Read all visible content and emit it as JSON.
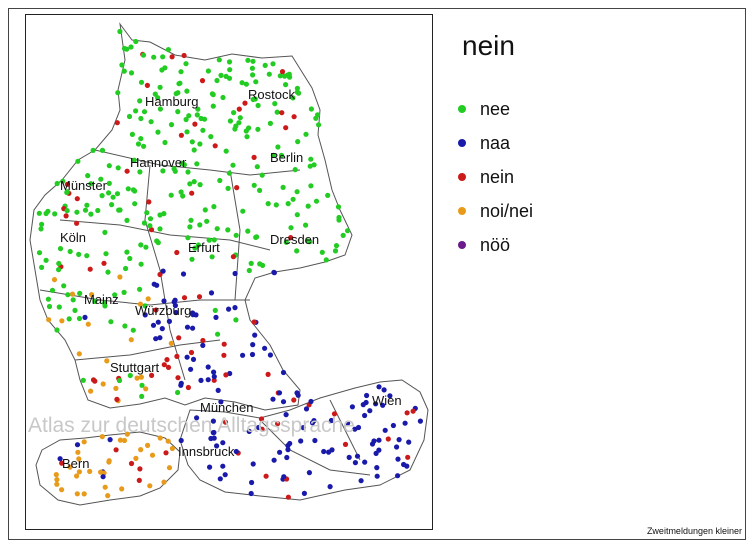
{
  "title": "nein",
  "legend": [
    {
      "label": "nee",
      "color": "#22cc22"
    },
    {
      "label": "naa",
      "color": "#1a1aaa"
    },
    {
      "label": "nein",
      "color": "#cc1a1a"
    },
    {
      "label": "noi/nei",
      "color": "#e89a1a"
    },
    {
      "label": "nöö",
      "color": "#6a1a8a"
    }
  ],
  "cities": [
    {
      "name": "Hamburg"
    },
    {
      "name": "Rostock"
    },
    {
      "name": "Hannover"
    },
    {
      "name": "Berlin"
    },
    {
      "name": "Münster"
    },
    {
      "name": "Köln"
    },
    {
      "name": "Erfurt"
    },
    {
      "name": "Dresden"
    },
    {
      "name": "Mainz"
    },
    {
      "name": "Würzburg"
    },
    {
      "name": "Stuttgart"
    },
    {
      "name": "München"
    },
    {
      "name": "Wien"
    },
    {
      "name": "Innsbruck"
    },
    {
      "name": "Bern"
    }
  ],
  "watermark": "Atlas zur deutschen Alltagssprache",
  "footnote": "Zweitmeldungen kleiner",
  "colors": {
    "border": "#222222",
    "boundary": "#555555"
  }
}
